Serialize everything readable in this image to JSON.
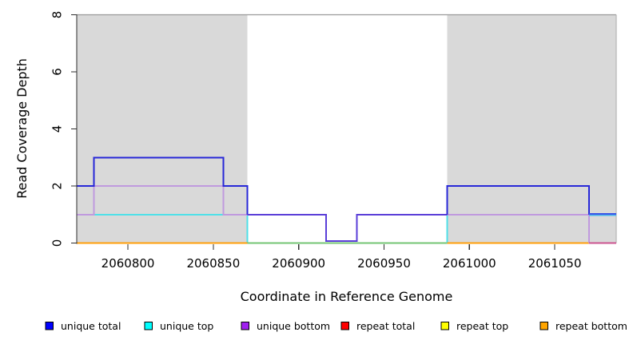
{
  "figure": {
    "background": "#ffffff",
    "shaded_region_fill": "#d9d9d9",
    "border_top_color": "#999999",
    "border_right_color": "#b9b9b9",
    "axis_color": "#2e2e2e",
    "text_color": "#000000"
  },
  "chart_data": {
    "type": "line",
    "step": true,
    "title": "",
    "xlabel": "Coordinate in Reference Genome",
    "ylabel": "Read Coverage Depth",
    "xlim": [
      2060770,
      2061086
    ],
    "ylim": [
      0,
      8
    ],
    "x_ticks": [
      2060800,
      2060850,
      2060900,
      2060950,
      2061000,
      2061050
    ],
    "y_ticks": [
      0,
      2,
      4,
      6,
      8
    ],
    "grid": false,
    "legend_position": "bottom",
    "shaded_regions": [
      {
        "name": "repeat-region-left",
        "from": 2060770,
        "to": 2060870
      },
      {
        "name": "repeat-region-right",
        "from": 2060987,
        "to": 2061086
      }
    ],
    "series": [
      {
        "name": "unique total",
        "color": "#0000FF",
        "steps": [
          [
            2060770,
            2
          ],
          [
            2060780,
            3
          ],
          [
            2060856,
            2
          ],
          [
            2060870,
            1
          ],
          [
            2060916,
            0
          ],
          [
            2060934,
            1
          ],
          [
            2060987,
            2
          ],
          [
            2061070,
            1
          ]
        ],
        "end": 2061086
      },
      {
        "name": "unique top",
        "color": "#00FFFF",
        "steps": [
          [
            2060770,
            1
          ],
          [
            2060870,
            0
          ],
          [
            2060987,
            1
          ]
        ],
        "end": 2061086
      },
      {
        "name": "unique bottom",
        "color": "#A020F0",
        "steps": [
          [
            2060770,
            1
          ],
          [
            2060780,
            2
          ],
          [
            2060856,
            1
          ],
          [
            2060916,
            0
          ],
          [
            2060934,
            1
          ],
          [
            2061070,
            0
          ]
        ],
        "end": 2061086
      },
      {
        "name": "repeat total",
        "color": "#FF0000",
        "steps": [
          [
            2060770,
            0
          ]
        ],
        "end": 2061086
      },
      {
        "name": "repeat top",
        "color": "#FFFF00",
        "steps": [
          [
            2060770,
            0
          ]
        ],
        "end": 2061086
      },
      {
        "name": "repeat bottom",
        "color": "#FFA500",
        "steps": [
          [
            2060770,
            0
          ]
        ],
        "end": 2061086
      }
    ],
    "render_segments": [
      {
        "color": "#4fe0e8",
        "pts": [
          [
            2060770,
            1
          ],
          [
            2060870,
            1
          ],
          [
            2060870,
            0
          ]
        ]
      },
      {
        "color": "#74c674",
        "pts": [
          [
            2060870,
            0
          ],
          [
            2060987,
            0
          ]
        ]
      },
      {
        "color": "#4fe0e8",
        "pts": [
          [
            2060987,
            0
          ],
          [
            2060987,
            1
          ],
          [
            2061070,
            1
          ]
        ]
      },
      {
        "color": "#ff9f0a",
        "pts": [
          [
            2060770,
            0
          ],
          [
            2060870,
            0
          ]
        ]
      },
      {
        "color": "#ff9f0a",
        "pts": [
          [
            2060987,
            0
          ],
          [
            2061070,
            0
          ]
        ]
      },
      {
        "color": "#c09ade",
        "pts": [
          [
            2060770,
            1
          ],
          [
            2060780,
            1
          ],
          [
            2060780,
            2
          ],
          [
            2060856,
            2
          ],
          [
            2060856,
            1
          ],
          [
            2060870,
            1
          ]
        ]
      },
      {
        "color": "#c09ade",
        "pts": [
          [
            2060987,
            1
          ],
          [
            2061070,
            1
          ],
          [
            2061070,
            0
          ]
        ]
      },
      {
        "color": "#cc5490",
        "pts": [
          [
            2061070,
            0
          ],
          [
            2061086,
            0
          ]
        ]
      },
      {
        "color": "#2828d8",
        "pts": [
          [
            2060770,
            2
          ],
          [
            2060780,
            2
          ],
          [
            2060780,
            3
          ],
          [
            2060856,
            3
          ],
          [
            2060856,
            2
          ],
          [
            2060870,
            2
          ],
          [
            2060870,
            1
          ]
        ]
      },
      {
        "color": "#5a3ed8",
        "pts": [
          [
            2060870,
            1
          ],
          [
            2060916,
            1
          ],
          [
            2060916,
            0.07
          ],
          [
            2060934,
            0.07
          ],
          [
            2060934,
            1
          ],
          [
            2060987,
            1
          ]
        ]
      },
      {
        "color": "#2828d8",
        "pts": [
          [
            2060987,
            1
          ],
          [
            2060987,
            2
          ],
          [
            2061070,
            2
          ],
          [
            2061070,
            1
          ]
        ]
      },
      {
        "color": "#45b4ec",
        "pts": [
          [
            2061070,
            1
          ],
          [
            2061086,
            1
          ]
        ],
        "dy": 0.8
      },
      {
        "color": "#3a55e6",
        "pts": [
          [
            2061070,
            1
          ],
          [
            2061086,
            1
          ]
        ],
        "dy": -0.8
      }
    ],
    "legend": {
      "items": [
        {
          "label": "unique total",
          "color": "#0000FF"
        },
        {
          "label": "unique top",
          "color": "#00FFFF"
        },
        {
          "label": "unique bottom",
          "color": "#A020F0"
        },
        {
          "label": "repeat total",
          "color": "#FF0000"
        },
        {
          "label": "repeat top",
          "color": "#FFFF00"
        },
        {
          "label": "repeat bottom",
          "color": "#FFA500"
        }
      ]
    }
  }
}
